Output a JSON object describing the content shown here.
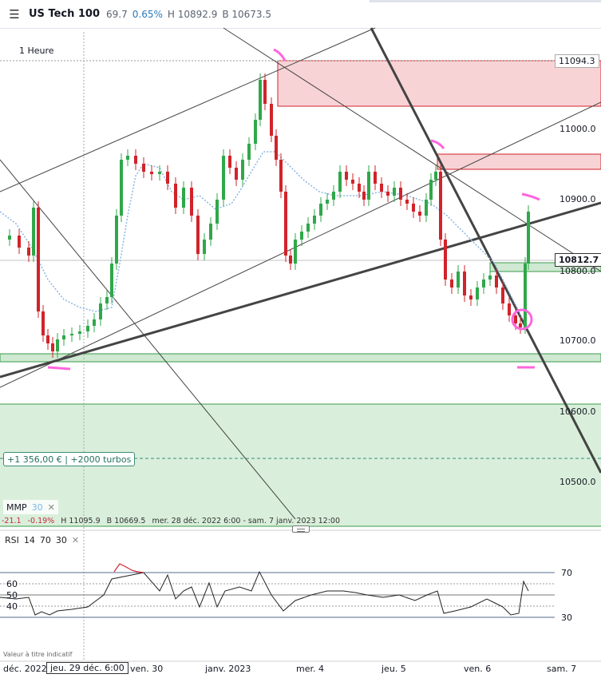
{
  "header": {
    "symbol": "US Tech 100",
    "last": "69.7",
    "change_pct": "0.65%",
    "high": "H 10892.9",
    "low": "B 10673.5"
  },
  "chart": {
    "timeframe": "1 Heure",
    "price_labels": [
      "11000.0",
      "10900.0",
      "10800.0",
      "10700.0",
      "10600.0",
      "10500.0"
    ],
    "price_box_top": "11094.3",
    "current_price": "10812.7",
    "turbo_label": "+1 356,00 € | +2000 turbos",
    "colors": {
      "up": "#2fa84a",
      "down": "#d1232a",
      "ma": "#8ab6e3",
      "zone_red": "#f7c9cc",
      "zone_green": "#cfe9d2"
    }
  },
  "mmp": {
    "label": "MMP",
    "value": "30"
  },
  "stats": {
    "change": "-21.1",
    "change_pct": "-0.19%",
    "high": "H 11095.9",
    "low": "B 10669.5",
    "range": "mer. 28 déc. 2022 6:00 - sam. 7 janv. 2023 12:00"
  },
  "rsi": {
    "label": "RSI",
    "p1": "14",
    "p2": "70",
    "p3": "30",
    "levels": [
      "70",
      "60",
      "50",
      "40",
      "30"
    ]
  },
  "watermark": "Valeur à titre indicatif",
  "x_axis": {
    "labels": [
      "déc. 2022",
      "ven. 30",
      "janv. 2023",
      "mer. 4",
      "jeu. 5",
      "ven. 6",
      "sam. 7"
    ],
    "hover": "jeu. 29 déc. 6:00"
  }
}
